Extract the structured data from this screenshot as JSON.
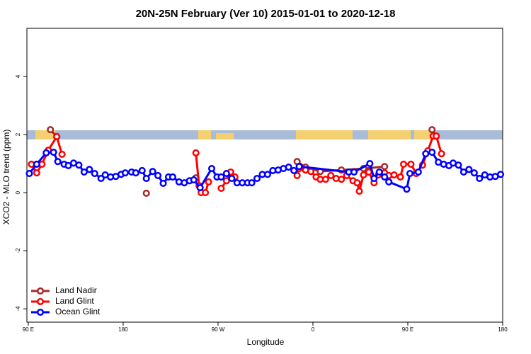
{
  "chart_data": {
    "type": "line",
    "title": "20N-25N February (Ver 10)   2015-01-01 to 2020-12-18",
    "x_label": "Longitude",
    "y_label": "XCO2 - MLO trend (ppm)",
    "xlim": [
      88.7,
      540
    ],
    "xticks": [
      {
        "value": 90,
        "label": "90 E"
      },
      {
        "value": 180,
        "label": "180"
      },
      {
        "value": 270,
        "label": "90 W"
      },
      {
        "value": 360,
        "label": "0"
      },
      {
        "value": 450,
        "label": "90 E"
      },
      {
        "value": 540,
        "label": "180"
      }
    ],
    "ylim": [
      -4.46,
      5.66
    ],
    "yticks": [
      -4,
      -2,
      0,
      2,
      4
    ],
    "legend": "bottom-left",
    "series": [
      {
        "name": "Land Nadir",
        "color": "#a52a2a",
        "x": [
          111,
          117,
          null,
          202,
          null,
          249,
          null,
          345,
          353,
          367,
          387,
          408,
          428,
          null,
          473,
          477
        ],
        "values": [
          2.17,
          1.93,
          null,
          -0.02,
          null,
          0.51,
          null,
          1.07,
          0.88,
          0.73,
          0.78,
          0.83,
          0.9,
          null,
          2.17,
          1.95
        ]
      },
      {
        "name": "Land Glint",
        "color": "#ff0000",
        "x": [
          93,
          98,
          103,
          109,
          117,
          122,
          null,
          249,
          252,
          254,
          258,
          261,
          null,
          273,
          278,
          282,
          286,
          null,
          345,
          347,
          353,
          358,
          363,
          367,
          372,
          377,
          382,
          387,
          392,
          398,
          402,
          404,
          408,
          413,
          418,
          422,
          428,
          432,
          437,
          443,
          446,
          453,
          458,
          464,
          469,
          474,
          477,
          482
        ],
        "values": [
          0.98,
          0.68,
          0.98,
          1.46,
          1.93,
          1.32,
          null,
          1.37,
          0.24,
          0,
          0,
          0.37,
          null,
          0.15,
          0.41,
          0.71,
          0.54,
          null,
          0.59,
          0.83,
          0.78,
          0.73,
          0.54,
          0.46,
          0.46,
          0.59,
          0.49,
          0.46,
          0.59,
          0.41,
          0.34,
          0.05,
          0.61,
          0.71,
          0.34,
          0.61,
          0.68,
          0.59,
          0.61,
          0.54,
          0.98,
          0.98,
          0.66,
          0.95,
          1.44,
          1.95,
          1.95,
          1.34
        ]
      },
      {
        "name": "Ocean Glint",
        "color": "#0000ff",
        "x": [
          91,
          98,
          107,
          114,
          118,
          124,
          128,
          133,
          138,
          143,
          148,
          153,
          159,
          163,
          168,
          173,
          178,
          182,
          188,
          192,
          198,
          202,
          208,
          213,
          218,
          223,
          227,
          233,
          238,
          243,
          247,
          253,
          264,
          269,
          273,
          278,
          283,
          288,
          293,
          298,
          302,
          307,
          312,
          317,
          322,
          327,
          332,
          337,
          342,
          347,
          394,
          399,
          414,
          418,
          423,
          428,
          432,
          449,
          452,
          460,
          467,
          473,
          479,
          484,
          489,
          493,
          498,
          503,
          508,
          513,
          518,
          523,
          528,
          533,
          538
        ],
        "values": [
          0.66,
          0.98,
          1.37,
          1.39,
          1.07,
          0.98,
          0.93,
          1.02,
          0.95,
          0.71,
          0.8,
          0.66,
          0.49,
          0.61,
          0.54,
          0.56,
          0.63,
          0.68,
          0.71,
          0.68,
          0.76,
          0.49,
          0.73,
          0.59,
          0.32,
          0.54,
          0.54,
          0.37,
          0.34,
          0.41,
          0.44,
          0.17,
          0.83,
          0.54,
          0.54,
          0.66,
          0.49,
          0.34,
          0.34,
          0.34,
          0.34,
          0.49,
          0.63,
          0.63,
          0.76,
          0.78,
          0.83,
          0.88,
          0.76,
          0.9,
          0.71,
          0.71,
          1.0,
          0.49,
          0.71,
          0.54,
          0.37,
          0.12,
          0.66,
          0.71,
          1.34,
          1.39,
          1.05,
          0.98,
          0.93,
          1.02,
          0.95,
          0.71,
          0.8,
          0.68,
          0.49,
          0.61,
          0.54,
          0.56,
          0.63
        ]
      }
    ]
  }
}
